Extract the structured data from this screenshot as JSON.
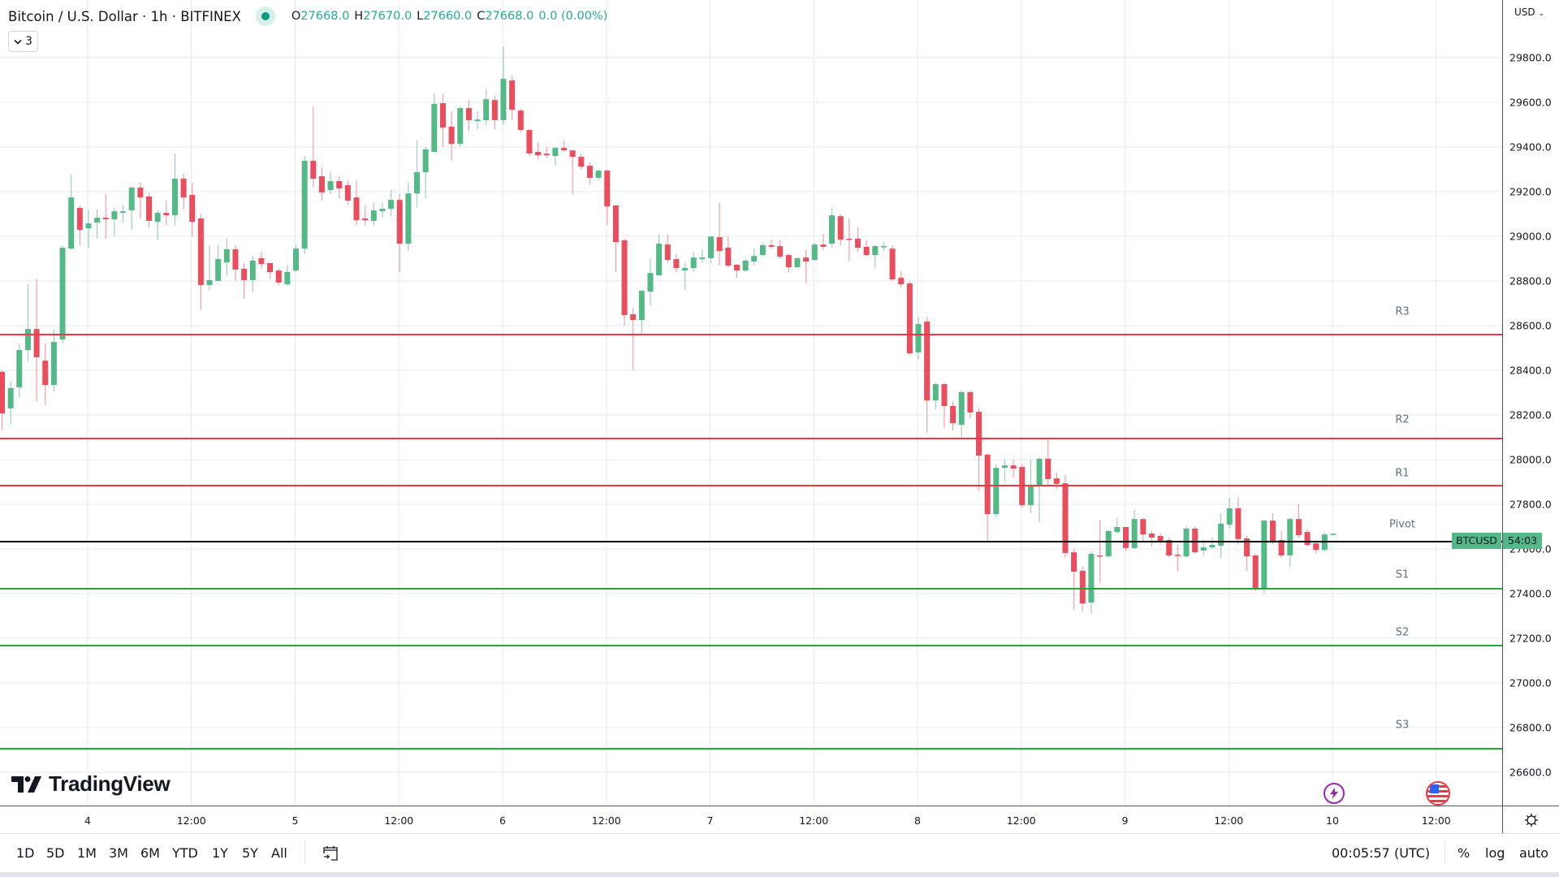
{
  "header": {
    "title": "Bitcoin / U.S. Dollar · 1h · BITFINEX",
    "status_dot_color": "#089981",
    "ohlc": {
      "o_label": "O",
      "o_value": "27668.0",
      "h_label": "H",
      "h_value": "27670.0",
      "l_label": "L",
      "l_value": "27660.0",
      "c_label": "C",
      "c_value": "27668.0",
      "change": "0.0 (0.00%)"
    },
    "collapse_button": {
      "icon": "chevron-down-icon",
      "count": "3"
    }
  },
  "price_axis": {
    "currency": "USD",
    "labels": [
      "29800.0",
      "29600.0",
      "29400.0",
      "29200.0",
      "29000.0",
      "28800.0",
      "28600.0",
      "28400.0",
      "28200.0",
      "28000.0",
      "27800.0",
      "27600.0",
      "27400.0",
      "27200.0",
      "27000.0",
      "26800.0",
      "26600.0"
    ]
  },
  "time_axis": {
    "labels": [
      "4",
      "12:00",
      "5",
      "12:00",
      "6",
      "12:00",
      "7",
      "12:00",
      "8",
      "12:00",
      "9",
      "12:00",
      "10",
      "12:00"
    ],
    "settings_icon": "gear-icon"
  },
  "price_badge": {
    "symbol": "BTCUSD",
    "countdown": "54:03",
    "color": "#54b98a"
  },
  "pivot_labels": {
    "r3": "R3",
    "r2": "R2",
    "r1": "R1",
    "pivot": "Pivot",
    "s1": "S1",
    "s2": "S2",
    "s3": "S3"
  },
  "events": [
    {
      "icon": "lightning-icon",
      "color": "#9c27b0"
    },
    {
      "icon": "us-flag-icon",
      "color": "#f23645"
    }
  ],
  "logo": {
    "text": "TradingView"
  },
  "bottom_bar": {
    "ranges": [
      "1D",
      "5D",
      "1M",
      "3M",
      "6M",
      "YTD",
      "1Y",
      "5Y",
      "All"
    ],
    "goto_date_icon": "calendar-arrow-icon",
    "clock": "00:05:57 (UTC)",
    "options": [
      "%",
      "log",
      "auto"
    ]
  },
  "colors": {
    "up": "#53b987",
    "down": "#eb4d5c",
    "up_wick": "#a3c9c8",
    "down_wick": "#f0a0a8",
    "resistance": "#f23645",
    "support": "#22ab34",
    "pivot": "#000000",
    "grid": "#e6ebf1"
  },
  "chart_data": {
    "type": "candlestick",
    "title": "Bitcoin / U.S. Dollar · 1h · BITFINEX",
    "xlabel": "",
    "ylabel": "USD",
    "ylim": [
      26450,
      30100
    ],
    "grid": true,
    "x_ticks": [
      "4",
      "12:00",
      "5",
      "12:00",
      "6",
      "12:00",
      "7",
      "12:00",
      "8",
      "12:00",
      "9",
      "12:00",
      "10",
      "12:00"
    ],
    "y_ticks": [
      29800,
      29600,
      29400,
      29200,
      29000,
      28800,
      28600,
      28400,
      28200,
      28000,
      27800,
      27600,
      27400,
      27200,
      27000,
      26800,
      26600
    ],
    "pivot_levels": {
      "R3": 28560,
      "R2": 28094,
      "R1": 27884,
      "Pivot": 27632,
      "S1": 27422,
      "S2": 27167,
      "S3": 26705
    },
    "ohlc": [
      [
        28393,
        28400,
        28130,
        28207
      ],
      [
        28229,
        28349,
        28160,
        28320
      ],
      [
        28324,
        28520,
        28280,
        28491
      ],
      [
        28491,
        28785,
        28440,
        28585
      ],
      [
        28585,
        28810,
        28262,
        28458
      ],
      [
        28443,
        28520,
        28243,
        28334
      ],
      [
        28334,
        28582,
        28305,
        28527
      ],
      [
        28538,
        28960,
        28520,
        28949
      ],
      [
        28945,
        29276,
        28940,
        29174
      ],
      [
        29127,
        29138,
        28960,
        29029
      ],
      [
        29036,
        29120,
        28945,
        29058
      ],
      [
        29062,
        29120,
        28990,
        29083
      ],
      [
        29083,
        29190,
        28990,
        29076
      ],
      [
        29076,
        29130,
        29000,
        29112
      ],
      [
        29105,
        29140,
        29060,
        29112
      ],
      [
        29116,
        29225,
        29030,
        29218
      ],
      [
        29218,
        29240,
        29080,
        29174
      ],
      [
        29178,
        29195,
        29040,
        29069
      ],
      [
        29065,
        29115,
        28985,
        29105
      ],
      [
        29105,
        29160,
        29050,
        29094
      ],
      [
        29094,
        29370,
        29050,
        29258
      ],
      [
        29258,
        29280,
        29120,
        29174
      ],
      [
        29185,
        29240,
        29000,
        29065
      ],
      [
        29080,
        29100,
        28670,
        28782
      ],
      [
        28782,
        28960,
        28760,
        28804
      ],
      [
        28800,
        28960,
        28800,
        28898
      ],
      [
        28883,
        28990,
        28822,
        28942
      ],
      [
        28942,
        28960,
        28800,
        28851
      ],
      [
        28855,
        28880,
        28720,
        28804
      ],
      [
        28804,
        28910,
        28750,
        28891
      ],
      [
        28902,
        28930,
        28855,
        28876
      ],
      [
        28880,
        28880,
        28810,
        28840
      ],
      [
        28847,
        28855,
        28780,
        28793
      ],
      [
        28785,
        28870,
        28780,
        28840
      ],
      [
        28847,
        28960,
        28840,
        28945
      ],
      [
        28945,
        29360,
        28920,
        29338
      ],
      [
        29338,
        29580,
        29220,
        29258
      ],
      [
        29269,
        29310,
        29160,
        29196
      ],
      [
        29207,
        29290,
        29190,
        29247
      ],
      [
        29247,
        29270,
        29170,
        29214
      ],
      [
        29229,
        29250,
        29140,
        29160
      ],
      [
        29174,
        29250,
        29050,
        29072
      ],
      [
        29080,
        29140,
        29050,
        29072
      ],
      [
        29069,
        29150,
        29050,
        29116
      ],
      [
        29112,
        29150,
        29085,
        29123
      ],
      [
        29123,
        29210,
        29090,
        29163
      ],
      [
        29163,
        29190,
        28840,
        28967
      ],
      [
        28967,
        29240,
        28935,
        29192
      ],
      [
        29192,
        29430,
        29130,
        29287
      ],
      [
        29287,
        29400,
        29170,
        29389
      ],
      [
        29378,
        29640,
        29380,
        29593
      ],
      [
        29596,
        29640,
        29400,
        29487
      ],
      [
        29491,
        29560,
        29340,
        29414
      ],
      [
        29414,
        29580,
        29400,
        29574
      ],
      [
        29574,
        29610,
        29470,
        29520
      ],
      [
        29516,
        29560,
        29480,
        29523
      ],
      [
        29520,
        29660,
        29500,
        29614
      ],
      [
        29610,
        29630,
        29480,
        29520
      ],
      [
        29520,
        29850,
        29500,
        29705
      ],
      [
        29698,
        29720,
        29520,
        29567
      ],
      [
        29563,
        29570,
        29465,
        29476
      ],
      [
        29476,
        29480,
        29360,
        29371
      ],
      [
        29378,
        29420,
        29345,
        29363
      ],
      [
        29370,
        29400,
        29350,
        29363
      ],
      [
        29360,
        29400,
        29320,
        29396
      ],
      [
        29396,
        29430,
        29380,
        29385
      ],
      [
        29385,
        29380,
        29190,
        29356
      ],
      [
        29356,
        29370,
        29300,
        29312
      ],
      [
        29316,
        29330,
        29230,
        29262
      ],
      [
        29262,
        29300,
        29250,
        29294
      ],
      [
        29294,
        29300,
        29050,
        29134
      ],
      [
        29138,
        29140,
        28840,
        28974
      ],
      [
        28982,
        28990,
        28600,
        28647
      ],
      [
        28651,
        28680,
        28400,
        28625
      ],
      [
        28625,
        28760,
        28560,
        28756
      ],
      [
        28752,
        28900,
        28690,
        28836
      ],
      [
        28825,
        29010,
        28825,
        28967
      ],
      [
        28963,
        29010,
        28880,
        28894
      ],
      [
        28898,
        28920,
        28840,
        28858
      ],
      [
        28847,
        28880,
        28760,
        28858
      ],
      [
        28858,
        28930,
        28840,
        28905
      ],
      [
        28898,
        28940,
        28880,
        28905
      ],
      [
        28902,
        29000,
        28880,
        28999
      ],
      [
        28996,
        29150,
        28870,
        28934
      ],
      [
        28949,
        29000,
        28860,
        28869
      ],
      [
        28873,
        28870,
        28813,
        28847
      ],
      [
        28847,
        28900,
        28840,
        28891
      ],
      [
        28887,
        28945,
        28870,
        28912
      ],
      [
        28916,
        28970,
        28910,
        28960
      ],
      [
        28960,
        28985,
        28945,
        28953
      ],
      [
        28956,
        28985,
        28900,
        28909
      ],
      [
        28916,
        28920,
        28840,
        28862
      ],
      [
        28862,
        28905,
        28860,
        28902
      ],
      [
        28905,
        28940,
        28790,
        28887
      ],
      [
        28894,
        28970,
        28890,
        28963
      ],
      [
        28963,
        29010,
        28940,
        28953
      ],
      [
        28967,
        29130,
        28950,
        29094
      ],
      [
        29090,
        29100,
        28960,
        28985
      ],
      [
        28989,
        29080,
        28890,
        28985
      ],
      [
        28989,
        29040,
        28930,
        28949
      ],
      [
        28953,
        28985,
        28910,
        28916
      ],
      [
        28916,
        28960,
        28860,
        28956
      ],
      [
        28953,
        28975,
        28935,
        28956
      ],
      [
        28945,
        28960,
        28800,
        28807
      ],
      [
        28814,
        28845,
        28770,
        28785
      ],
      [
        28789,
        28800,
        28470,
        28476
      ],
      [
        28480,
        28640,
        28450,
        28607
      ],
      [
        28618,
        28640,
        28120,
        28265
      ],
      [
        28265,
        28345,
        28225,
        28338
      ],
      [
        28338,
        28345,
        28140,
        28240
      ],
      [
        28240,
        28260,
        28130,
        28163
      ],
      [
        28156,
        28310,
        28100,
        28302
      ],
      [
        28302,
        28310,
        28185,
        28211
      ],
      [
        28214,
        28230,
        27860,
        28018
      ],
      [
        28022,
        28030,
        27630,
        27756
      ],
      [
        27756,
        27980,
        27740,
        27963
      ],
      [
        27963,
        28000,
        27900,
        27974
      ],
      [
        27974,
        28000,
        27920,
        27960
      ],
      [
        27967,
        27980,
        27785,
        27796
      ],
      [
        27796,
        28000,
        27760,
        27880
      ],
      [
        27884,
        28010,
        27720,
        28004
      ],
      [
        28004,
        28100,
        27880,
        27913
      ],
      [
        27916,
        27940,
        27870,
        27891
      ],
      [
        27894,
        27930,
        27560,
        27582
      ],
      [
        27585,
        27600,
        27330,
        27498
      ],
      [
        27502,
        27520,
        27320,
        27356
      ],
      [
        27360,
        27590,
        27310,
        27578
      ],
      [
        27571,
        27730,
        27450,
        27567
      ],
      [
        27567,
        27685,
        27560,
        27680
      ],
      [
        27676,
        27740,
        27670,
        27698
      ],
      [
        27698,
        27700,
        27590,
        27604
      ],
      [
        27604,
        27775,
        27600,
        27734
      ],
      [
        27734,
        27740,
        27630,
        27665
      ],
      [
        27669,
        27680,
        27610,
        27651
      ],
      [
        27658,
        27670,
        27620,
        27636
      ],
      [
        27640,
        27650,
        27560,
        27571
      ],
      [
        27574,
        27620,
        27500,
        27571
      ],
      [
        27567,
        27700,
        27560,
        27691
      ],
      [
        27691,
        27700,
        27580,
        27585
      ],
      [
        27593,
        27640,
        27570,
        27607
      ],
      [
        27607,
        27650,
        27600,
        27618
      ],
      [
        27614,
        27760,
        27560,
        27713
      ],
      [
        27709,
        27830,
        27690,
        27782
      ],
      [
        27782,
        27830,
        27620,
        27644
      ],
      [
        27647,
        27660,
        27500,
        27567
      ],
      [
        27571,
        27580,
        27410,
        27425
      ],
      [
        27425,
        27730,
        27400,
        27727
      ],
      [
        27727,
        27760,
        27620,
        27636
      ],
      [
        27640,
        27680,
        27560,
        27571
      ],
      [
        27571,
        27740,
        27520,
        27734
      ],
      [
        27734,
        27800,
        27650,
        27662
      ],
      [
        27676,
        27690,
        27610,
        27618
      ],
      [
        27625,
        27630,
        27580,
        27596
      ],
      [
        27596,
        27675,
        27590,
        27665
      ],
      [
        27665,
        27670,
        27660,
        27668
      ]
    ]
  }
}
